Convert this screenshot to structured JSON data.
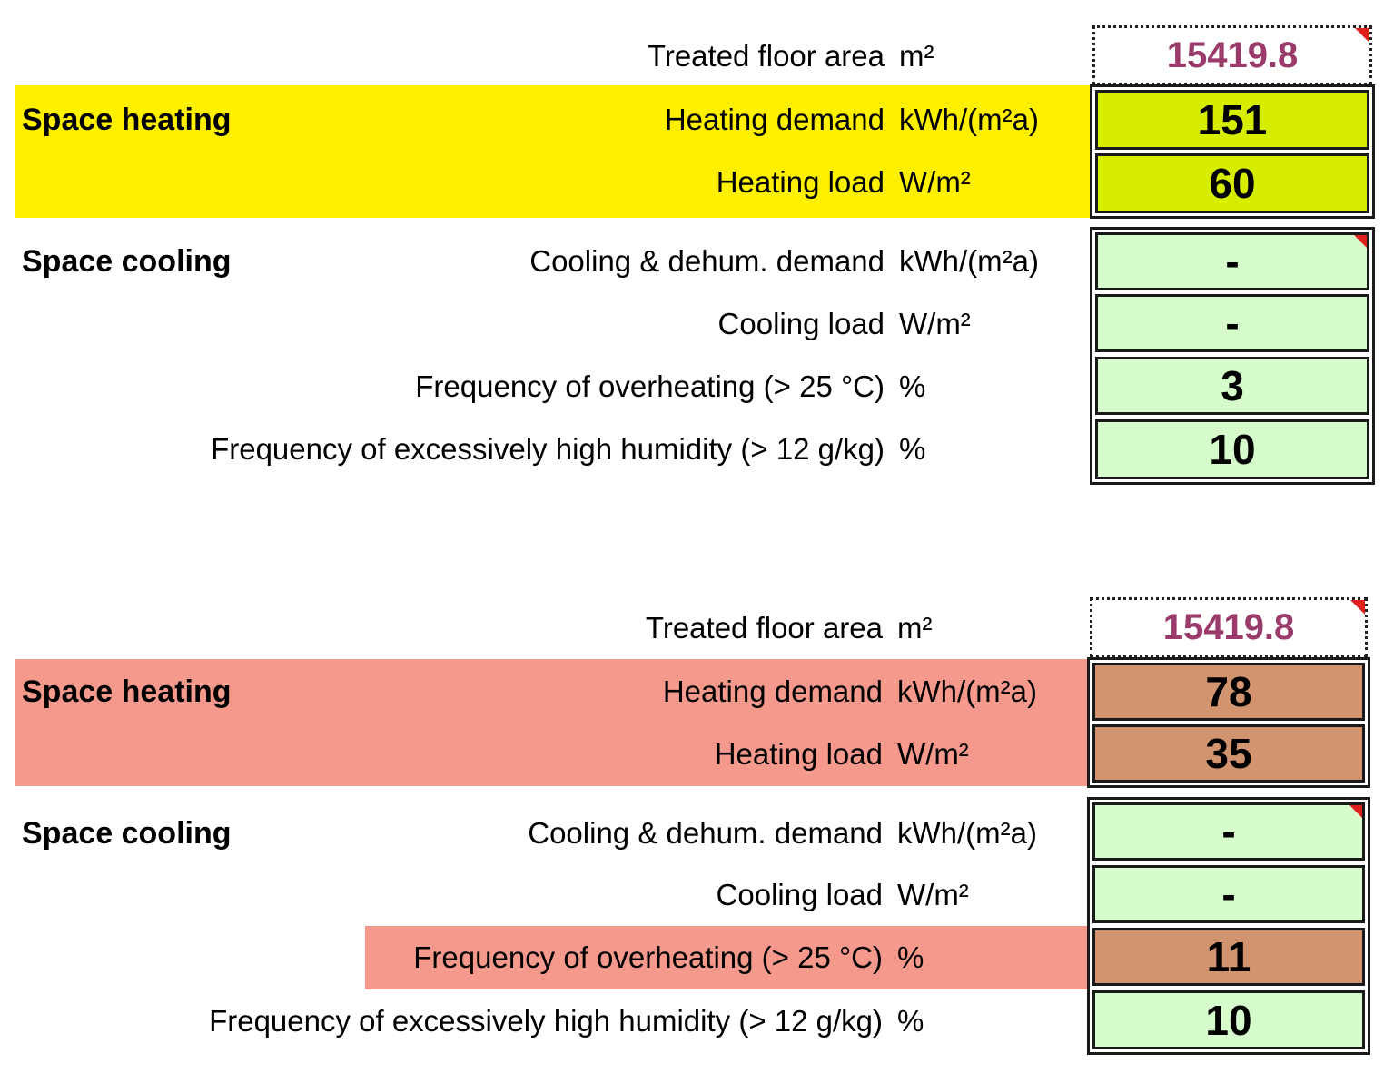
{
  "colors": {
    "heating_band_1": "#fff000",
    "heating_cell_1": "#d7ed00",
    "heating_band_2": "#f4998c",
    "heating_cell_2": "#d1946f",
    "cooling_cell": "#d6fccc",
    "tfa_value": "#9b3b6b",
    "comment_flag": "#e0201d"
  },
  "panel_1": {
    "tfa": {
      "label": "Treated floor area",
      "unit": "m²",
      "value": "15419.8"
    },
    "heating": {
      "title": "Space heating",
      "demand": {
        "label": "Heating demand",
        "unit": "kWh/(m²a)",
        "value": "151"
      },
      "load": {
        "label": "Heating load",
        "unit": "W/m²",
        "value": "60"
      }
    },
    "cooling": {
      "title": "Space cooling",
      "demand": {
        "label": "Cooling & dehum. demand",
        "unit": "kWh/(m²a)",
        "value": "-"
      },
      "load": {
        "label": "Cooling load",
        "unit": "W/m²",
        "value": "-"
      },
      "overheating": {
        "label": "Frequency of overheating (> 25 °C)",
        "unit": "%",
        "value": "3"
      },
      "humidity": {
        "label": "Frequency of excessively high humidity (> 12 g/kg)",
        "unit": "%",
        "value": "10"
      }
    }
  },
  "panel_2": {
    "tfa": {
      "label": "Treated floor area",
      "unit": "m²",
      "value": "15419.8"
    },
    "heating": {
      "title": "Space heating",
      "demand": {
        "label": "Heating demand",
        "unit": "kWh/(m²a)",
        "value": "78"
      },
      "load": {
        "label": "Heating load",
        "unit": "W/m²",
        "value": "35"
      }
    },
    "cooling": {
      "title": "Space cooling",
      "demand": {
        "label": "Cooling & dehum. demand",
        "unit": "kWh/(m²a)",
        "value": "-"
      },
      "load": {
        "label": "Cooling load",
        "unit": "W/m²",
        "value": "-"
      },
      "overheating": {
        "label": "Frequency of overheating (> 25 °C)",
        "unit": "%",
        "value": "11"
      },
      "humidity": {
        "label": "Frequency of excessively high humidity (> 12 g/kg)",
        "unit": "%",
        "value": "10"
      }
    }
  }
}
